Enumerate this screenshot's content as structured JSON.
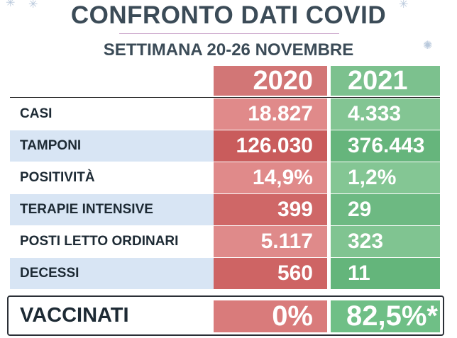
{
  "header": {
    "title": "CONFRONTO DATI COVID",
    "subtitle": "SETTIMANA 20-26 NOVEMBRE"
  },
  "columns": {
    "year_a": "2020",
    "year_b": "2021"
  },
  "colors": {
    "title_text": "#3b4b57",
    "col_2020_header": "#d27676",
    "col_2021_header": "#7cc18e",
    "label_stripe": "#d8e5f4"
  },
  "rows": [
    {
      "label": "CASI",
      "v2020": "18.827",
      "v2021": "4.333",
      "c2020": "#e08a8a",
      "c2021": "#83c593"
    },
    {
      "label": "TAMPONI",
      "v2020": "126.030",
      "v2021": "376.443",
      "c2020": "#c95c5c",
      "c2021": "#66b57c"
    },
    {
      "label": "POSITIVITÀ",
      "v2020": "14,9%",
      "v2021": "1,2%",
      "c2020": "#e08a8a",
      "c2021": "#84c694"
    },
    {
      "label": "TERAPIE INTENSIVE",
      "v2020": "399",
      "v2021": "29",
      "c2020": "#cf6767",
      "c2021": "#6db982"
    },
    {
      "label": "POSTI LETTO ORDINARI",
      "v2020": "5.117",
      "v2021": "323",
      "c2020": "#df8a8a",
      "c2021": "#80c491"
    },
    {
      "label": "DECESSI",
      "v2020": "560",
      "v2021": "11",
      "c2020": "#ce6464",
      "c2021": "#64b57b"
    }
  ],
  "vaccinati": {
    "label": "VACCINATI",
    "v2020": "0%",
    "v2021": "82,5%*"
  }
}
